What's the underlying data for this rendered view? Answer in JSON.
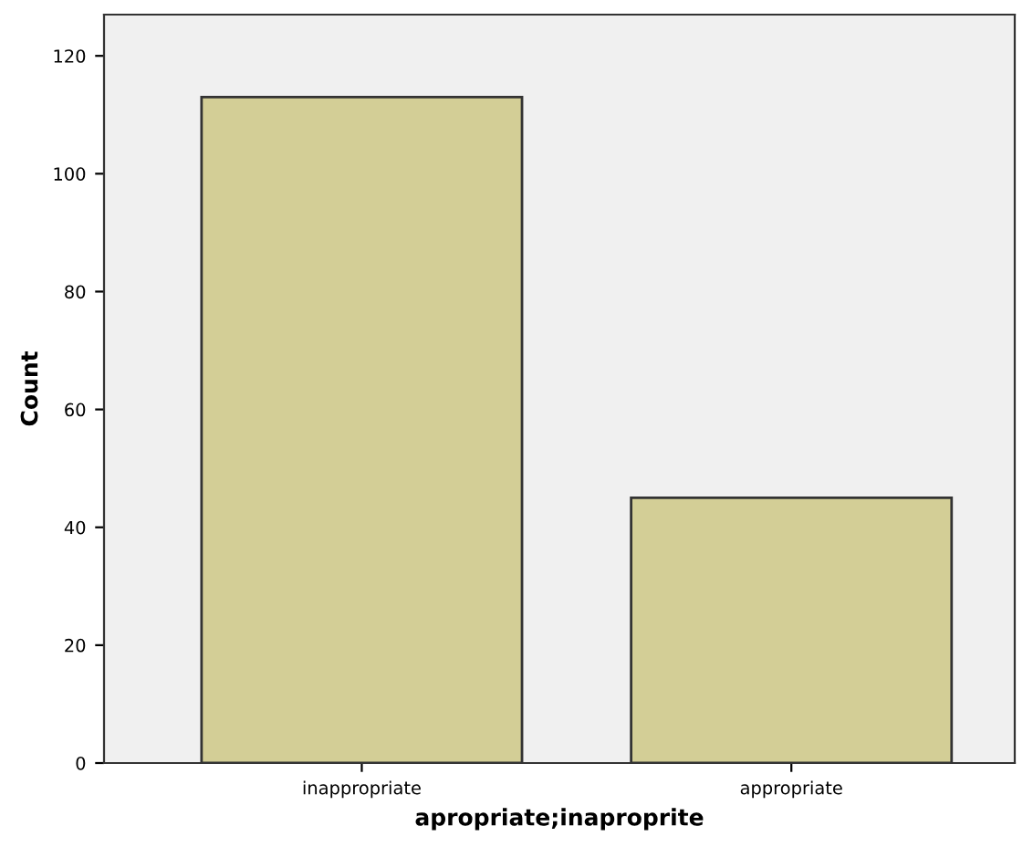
{
  "chart_data": {
    "type": "bar",
    "xlabel": "apropriate;inaproprite",
    "ylabel": "Count",
    "categories": [
      "inappropriate",
      "appropriate"
    ],
    "values": [
      113,
      45
    ],
    "color": "#d3ce96",
    "ylim": [
      0,
      127
    ],
    "yticks": [
      0,
      20,
      40,
      60,
      80,
      100,
      120
    ],
    "grid": false
  }
}
